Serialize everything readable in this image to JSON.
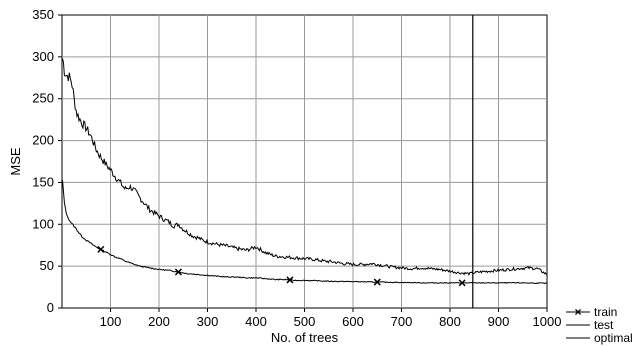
{
  "chart_data": {
    "type": "line",
    "title": "",
    "xlabel": "No. of trees",
    "ylabel": "MSE",
    "xlim": [
      0,
      1000
    ],
    "ylim": [
      0,
      350
    ],
    "grid": true,
    "x_ticks": [
      100,
      200,
      300,
      400,
      500,
      600,
      700,
      800,
      900,
      1000
    ],
    "y_ticks": [
      0,
      50,
      100,
      150,
      200,
      250,
      300,
      350
    ],
    "legend_position": "bottom-right outside plot",
    "series": [
      {
        "name": "train",
        "marker": "x",
        "color": "#000000",
        "x": [
          1,
          5,
          10,
          20,
          30,
          40,
          50,
          60,
          70,
          80,
          90,
          100,
          110,
          120,
          130,
          140,
          150,
          160,
          170,
          180,
          190,
          200,
          220,
          240,
          260,
          280,
          300,
          320,
          340,
          360,
          380,
          400,
          420,
          440,
          460,
          480,
          500,
          550,
          600,
          650,
          700,
          750,
          800,
          850,
          900,
          950,
          1000
        ],
        "y": [
          152,
          125,
          110,
          101,
          94,
          86,
          81,
          77,
          73,
          70,
          67,
          64,
          61,
          59,
          56,
          54,
          52,
          50,
          49,
          48,
          47,
          46,
          45,
          43,
          41,
          40,
          39,
          38,
          37,
          37,
          36,
          36,
          35,
          34,
          34,
          33,
          33,
          32,
          31.5,
          31,
          30.5,
          30,
          30,
          30,
          30,
          30,
          29.5
        ],
        "marker_x": [
          80,
          240,
          470,
          650,
          825
        ]
      },
      {
        "name": "test",
        "color": "#000000",
        "x": [
          1,
          3,
          5,
          8,
          10,
          15,
          20,
          25,
          30,
          40,
          50,
          60,
          70,
          80,
          90,
          100,
          110,
          120,
          130,
          140,
          150,
          160,
          170,
          180,
          190,
          200,
          210,
          220,
          230,
          240,
          250,
          260,
          270,
          280,
          290,
          300,
          320,
          340,
          360,
          380,
          400,
          420,
          440,
          460,
          480,
          500,
          520,
          540,
          560,
          580,
          600,
          620,
          640,
          660,
          680,
          700,
          720,
          740,
          760,
          780,
          800,
          820,
          840,
          860,
          880,
          900,
          920,
          940,
          960,
          980,
          1000
        ],
        "y": [
          298,
          292,
          283,
          279,
          278,
          276,
          270,
          250,
          233,
          222,
          215,
          205,
          190,
          180,
          172,
          165,
          157,
          150,
          142,
          145,
          140,
          132,
          125,
          118,
          114,
          110,
          106,
          103,
          98,
          100,
          94,
          90,
          86,
          84,
          81,
          79,
          76,
          74,
          71,
          69,
          73,
          66,
          62,
          61,
          60,
          59,
          58,
          56,
          55,
          53,
          52,
          52,
          53,
          51,
          49,
          48,
          47,
          48,
          47,
          46,
          44,
          42,
          41,
          43,
          44,
          45,
          46,
          47,
          48,
          47,
          40
        ]
      },
      {
        "name": "optimal",
        "color": "#000000",
        "x_value": 847
      }
    ]
  }
}
